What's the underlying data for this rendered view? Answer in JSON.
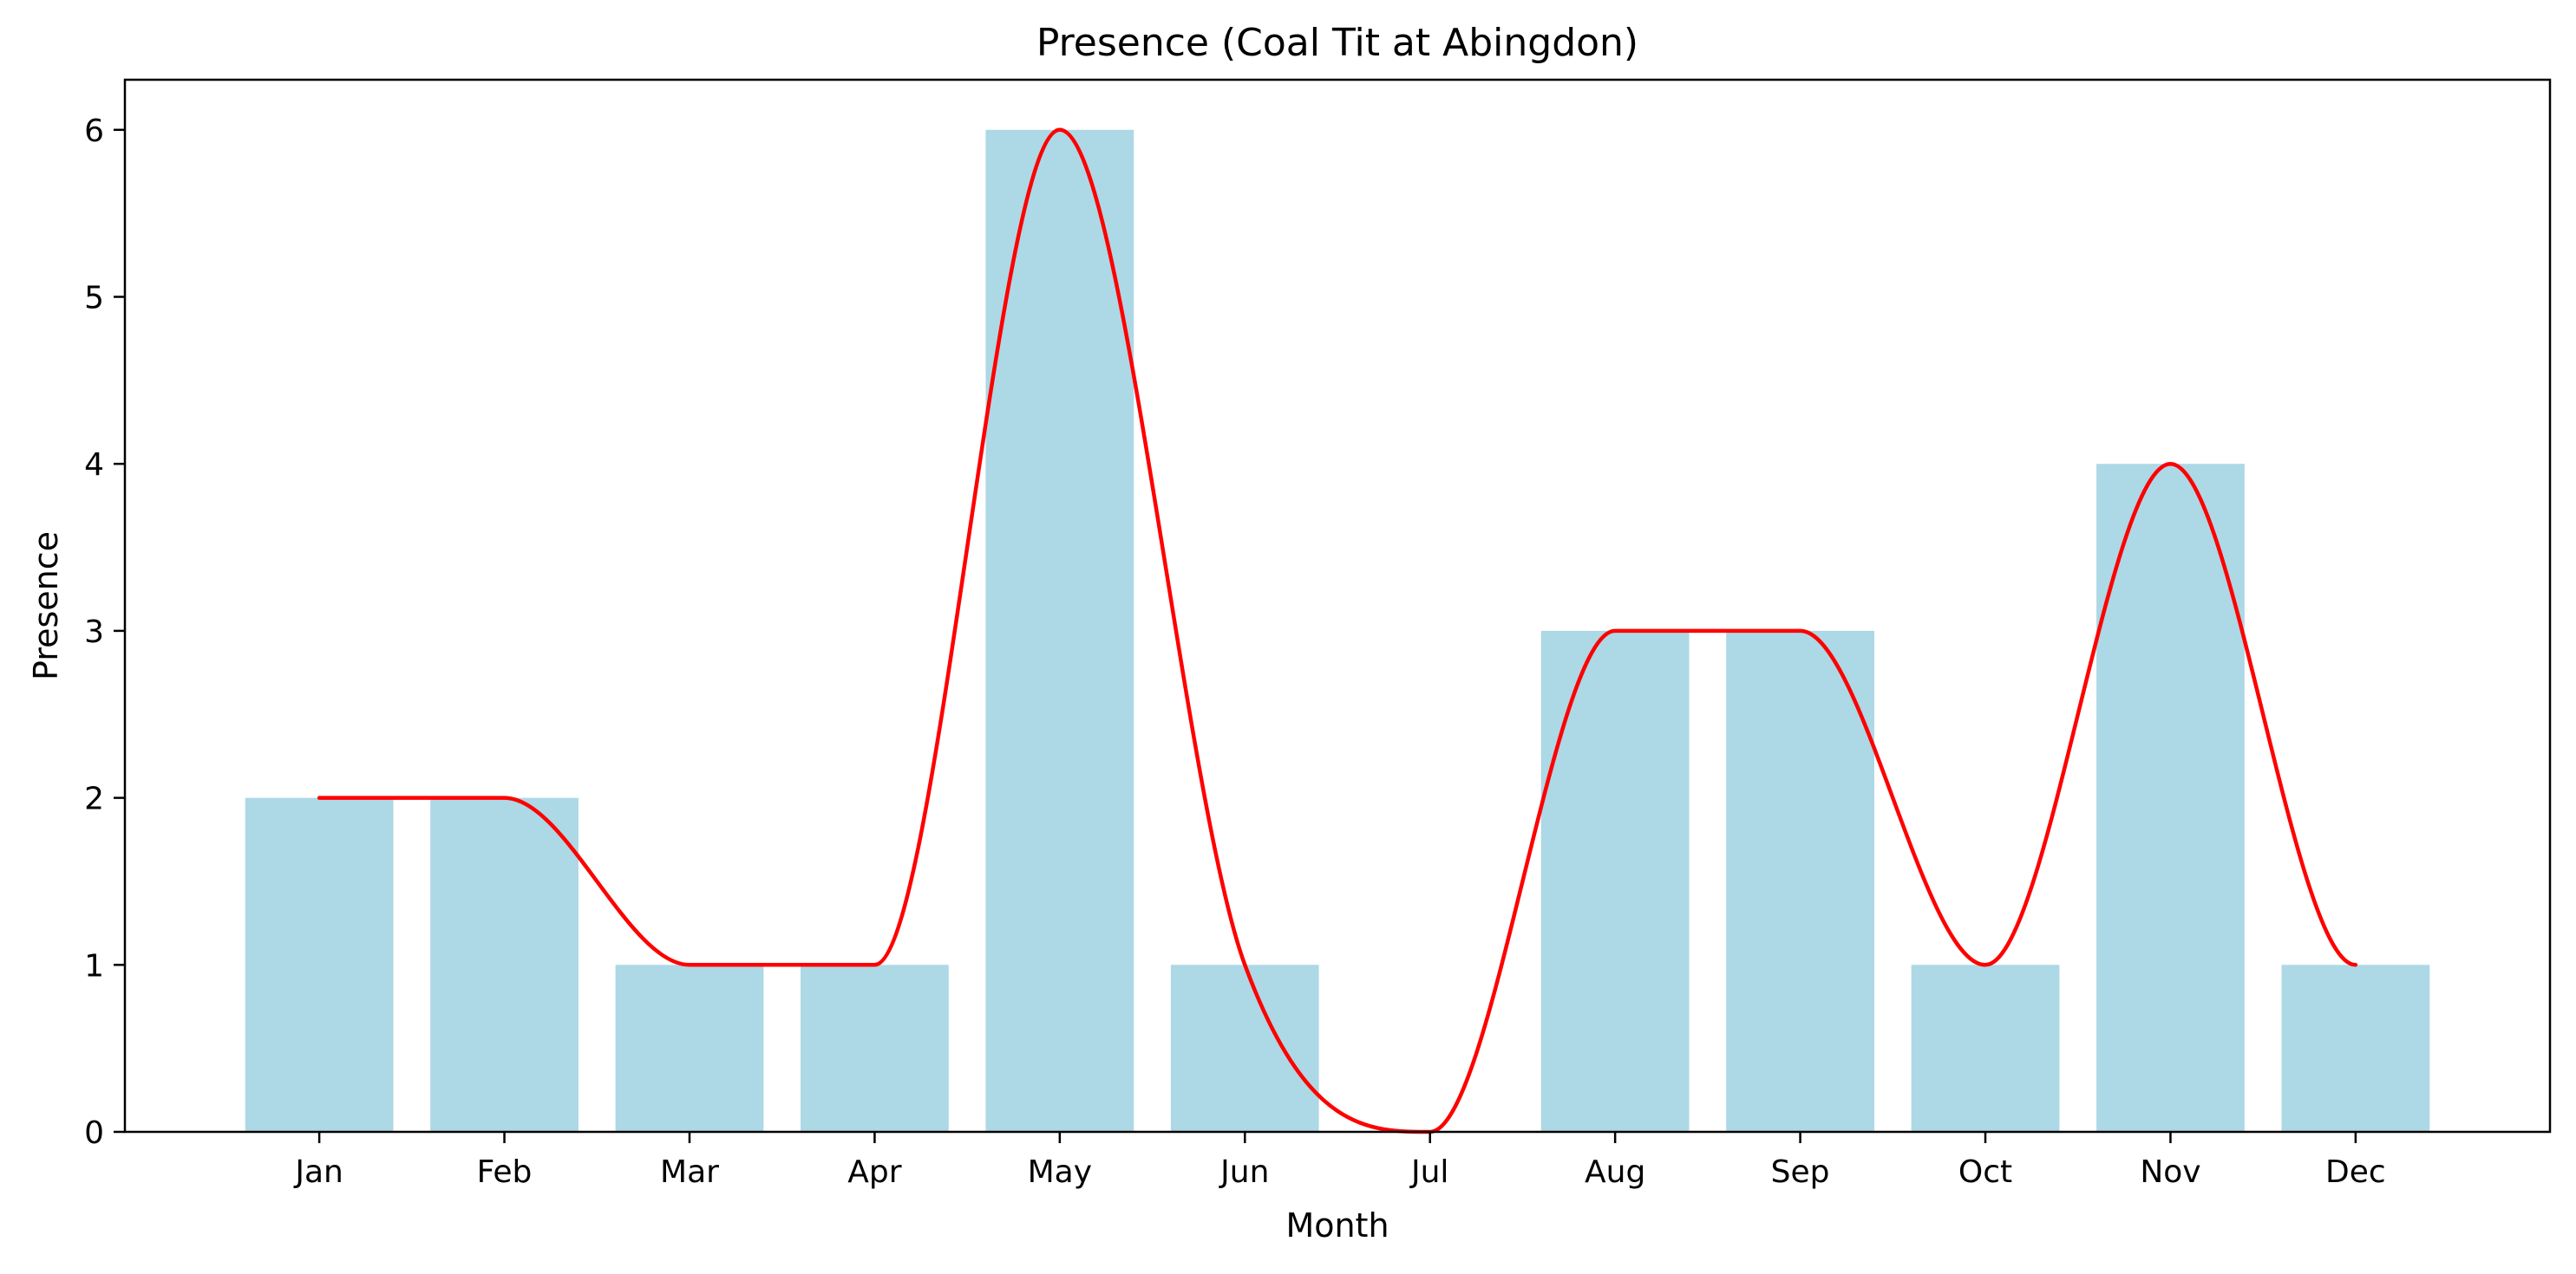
{
  "chart_data": {
    "type": "bar",
    "title": "Presence (Coal Tit at Abingdon)",
    "xlabel": "Month",
    "ylabel": "Presence",
    "categories": [
      "Jan",
      "Feb",
      "Mar",
      "Apr",
      "May",
      "Jun",
      "Jul",
      "Aug",
      "Sep",
      "Oct",
      "Nov",
      "Dec"
    ],
    "values": [
      2,
      2,
      1,
      1,
      6,
      1,
      0,
      3,
      3,
      1,
      4,
      1
    ],
    "ylim": [
      0,
      6.3
    ],
    "yticks": [
      0,
      1,
      2,
      3,
      4,
      5,
      6
    ],
    "grid": false,
    "bar_color": "#add8e6",
    "line_color": "#ff0000",
    "overlay": {
      "type": "line",
      "smooth": true,
      "values": [
        2,
        2,
        1,
        1,
        6,
        1,
        0,
        3,
        3,
        1,
        4,
        1
      ]
    }
  }
}
